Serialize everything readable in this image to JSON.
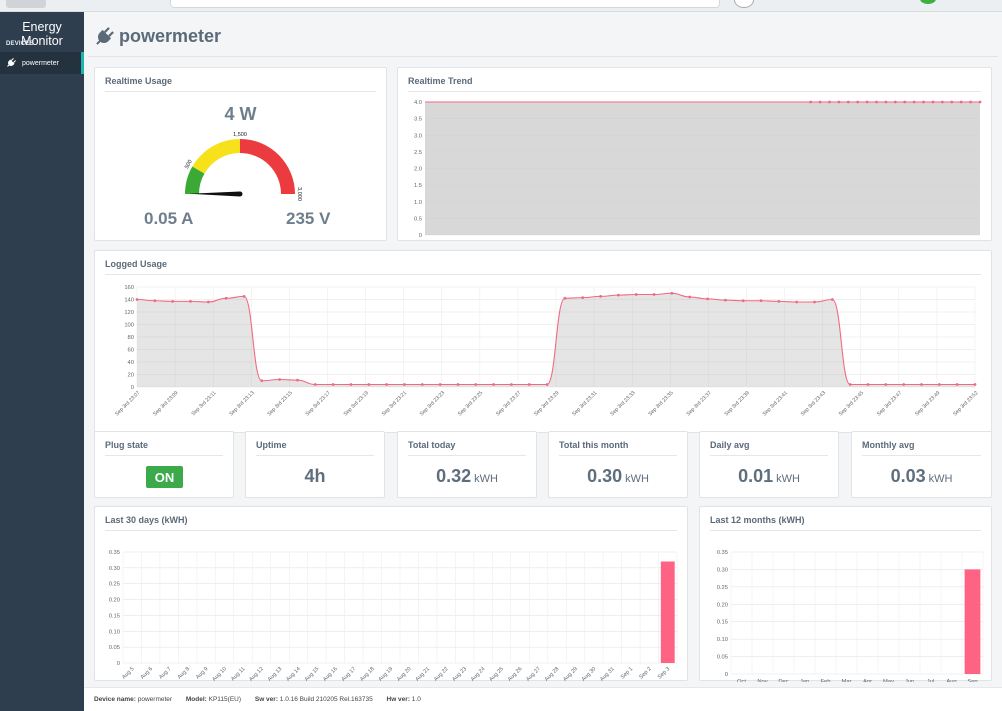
{
  "app": {
    "title": "Energy Monitor"
  },
  "sidebar": {
    "section": "DEVICES",
    "items": [
      {
        "label": "powermeter",
        "icon": "plug-icon",
        "active": true
      }
    ]
  },
  "page": {
    "title": "powermeter"
  },
  "realtime_usage": {
    "title": "Realtime Usage",
    "power": "4 W",
    "current": "0.05 A",
    "voltage": "235 V",
    "gauge": {
      "min": 0,
      "max": 3000,
      "value": 4,
      "labels": [
        "500",
        "1,500",
        "3,000"
      ],
      "bands": [
        {
          "to": 500,
          "color": "#3aaa35"
        },
        {
          "to": 1500,
          "color": "#f7e11b"
        },
        {
          "to": 3000,
          "color": "#ec3b3f"
        }
      ]
    }
  },
  "realtime_trend": {
    "title": "Realtime Trend",
    "chart_data": {
      "type": "area",
      "ylim": [
        0,
        4
      ],
      "yticks": [
        "0",
        "0.5",
        "1.0",
        "1.5",
        "2.0",
        "2.5",
        "3.0",
        "3.5",
        "4.0"
      ],
      "values": [
        4,
        4,
        4,
        4,
        4,
        4,
        4,
        4,
        4,
        4,
        4,
        4,
        4,
        4,
        4,
        4,
        4,
        4,
        4,
        4,
        4,
        4,
        4,
        4,
        4,
        4,
        4,
        4,
        4,
        4,
        4,
        4,
        4,
        4,
        4,
        4,
        4,
        4,
        4,
        4,
        4,
        4,
        4,
        4,
        4,
        4,
        4,
        4,
        4,
        4,
        4,
        4,
        4,
        4,
        4,
        4,
        4,
        4,
        4,
        4
      ],
      "markers_from": 41,
      "color": "#f06982"
    }
  },
  "logged_usage": {
    "title": "Logged Usage",
    "chart_data": {
      "type": "area",
      "ylim": [
        0,
        160
      ],
      "yticks": [
        "0",
        "20",
        "40",
        "60",
        "80",
        "100",
        "120",
        "140",
        "160"
      ],
      "x_labels": [
        "Sep 3rd 23:07",
        "Sep 3rd 23:09",
        "Sep 3rd 23:11",
        "Sep 3rd 23:13",
        "Sep 3rd 23:15",
        "Sep 3rd 23:17",
        "Sep 3rd 23:19",
        "Sep 3rd 23:21",
        "Sep 3rd 23:23",
        "Sep 3rd 23:25",
        "Sep 3rd 23:27",
        "Sep 3rd 23:29",
        "Sep 3rd 23:31",
        "Sep 3rd 23:33",
        "Sep 3rd 23:35",
        "Sep 3rd 23:37",
        "Sep 3rd 23:39",
        "Sep 3rd 23:41",
        "Sep 3rd 23:43",
        "Sep 3rd 23:45",
        "Sep 3rd 23:47",
        "Sep 3rd 23:49",
        "Sep 3rd 23:52"
      ],
      "values": [
        140,
        138,
        137,
        137,
        136,
        142,
        145,
        10,
        12,
        11,
        4,
        4,
        4,
        4,
        4,
        4,
        4,
        4,
        4,
        4,
        4,
        4,
        4,
        4,
        142,
        143,
        145,
        147,
        148,
        148,
        150,
        144,
        141,
        139,
        138,
        138,
        137,
        136,
        136,
        140,
        4,
        4,
        4,
        4,
        4,
        4,
        4,
        4
      ],
      "color": "#f06982"
    }
  },
  "stats": [
    {
      "title": "Plug state",
      "value": "ON",
      "unit": ""
    },
    {
      "title": "Uptime",
      "value": "4h",
      "unit": ""
    },
    {
      "title": "Total today",
      "value": "0.32",
      "unit": "kWH"
    },
    {
      "title": "Total this month",
      "value": "0.30",
      "unit": "kWH"
    },
    {
      "title": "Daily avg",
      "value": "0.01",
      "unit": "kWH"
    },
    {
      "title": "Monthly avg",
      "value": "0.03",
      "unit": "kWH"
    }
  ],
  "last_30_days": {
    "title": "Last 30 days (kWH)",
    "chart_data": {
      "type": "bar",
      "ylim": [
        0,
        0.35
      ],
      "yticks": [
        "0",
        "0.05",
        "0.10",
        "0.15",
        "0.20",
        "0.25",
        "0.30",
        "0.35"
      ],
      "categories": [
        "Aug 5",
        "Aug 6",
        "Aug 7",
        "Aug 8",
        "Aug 9",
        "Aug 10",
        "Aug 11",
        "Aug 12",
        "Aug 13",
        "Aug 14",
        "Aug 15",
        "Aug 16",
        "Aug 17",
        "Aug 18",
        "Aug 19",
        "Aug 20",
        "Aug 21",
        "Aug 22",
        "Aug 23",
        "Aug 24",
        "Aug 25",
        "Aug 26",
        "Aug 27",
        "Aug 28",
        "Aug 29",
        "Aug 30",
        "Aug 31",
        "Sep 1",
        "Sep 2",
        "Sep 3"
      ],
      "values": [
        0,
        0,
        0,
        0,
        0,
        0,
        0,
        0,
        0,
        0,
        0,
        0,
        0,
        0,
        0,
        0,
        0,
        0,
        0,
        0,
        0,
        0,
        0,
        0,
        0,
        0,
        0,
        0,
        0,
        0.32
      ],
      "color": "#ff6384"
    }
  },
  "last_12_months": {
    "title": "Last 12 months (kWH)",
    "chart_data": {
      "type": "bar",
      "ylim": [
        0,
        0.35
      ],
      "yticks": [
        "0",
        "0.05",
        "0.10",
        "0.15",
        "0.20",
        "0.25",
        "0.30",
        "0.35"
      ],
      "categories": [
        "Oct",
        "Nov",
        "Dec",
        "Jan",
        "Feb",
        "Mar",
        "Apr",
        "May",
        "Jun",
        "Jul",
        "Aug",
        "Sep"
      ],
      "values": [
        0,
        0,
        0,
        0,
        0,
        0,
        0,
        0,
        0,
        0,
        0,
        0.3
      ],
      "color": "#ff6384"
    }
  },
  "footer": {
    "device_name_label": "Device name:",
    "device_name": "powermeter",
    "model_label": "Model:",
    "model": "KP115(EU)",
    "sw_label": "Sw ver:",
    "sw": "1.0.16 Build 210205 Rel.163735",
    "hw_label": "Hw ver:",
    "hw": "1.0"
  }
}
